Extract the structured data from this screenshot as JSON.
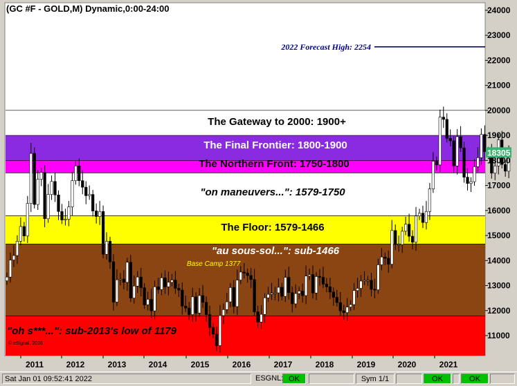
{
  "chart_data": {
    "type": "candlestick",
    "title": "(GC #F - GOLD,M) Dynamic,0:00-24:00",
    "ylim": [
      10200,
      24300
    ],
    "y_ticks": [
      "24000",
      "23000",
      "22000",
      "21000",
      "20000",
      "19000",
      "18000",
      "17000",
      "16000",
      "15000",
      "14000",
      "13000",
      "12000",
      "11000"
    ],
    "x_ticks": [
      "2011",
      "2012",
      "2013",
      "2014",
      "2015",
      "2016",
      "2017",
      "2018",
      "2019",
      "2020",
      "2021"
    ],
    "last_price_label": "18305",
    "last_price": 18305,
    "forecast": {
      "label": "2022 Forecast High:  2254",
      "value": 22540
    },
    "bands": [
      {
        "name": "gateway",
        "label": "The Gateway to 2000:  1900+",
        "low": 19000,
        "high": 20000,
        "color": "#ffffff",
        "text_color": "#000000",
        "italic": false
      },
      {
        "name": "frontier",
        "label": "The Final Frontier:  1800-1900",
        "low": 18000,
        "high": 19000,
        "color": "#8a2be2",
        "text_color": "#ffffff",
        "italic": false
      },
      {
        "name": "northern",
        "label": "The Northern Front:  1750-1800",
        "low": 17500,
        "high": 18000,
        "color": "#ff00ff",
        "text_color": "#000000",
        "italic": false
      },
      {
        "name": "maneuvers",
        "label": "\"on maneuvers...\":  1579-1750",
        "low": 15790,
        "high": 17500,
        "color": "#ffffff",
        "text_color": "#000000",
        "italic": true
      },
      {
        "name": "floor",
        "label": "The Floor:  1579-1466",
        "low": 14660,
        "high": 15790,
        "color": "#ffff00",
        "text_color": "#000000",
        "italic": false
      },
      {
        "name": "soussol",
        "label": "\"au sous-sol...\":  sub-1466",
        "low": 11790,
        "high": 14660,
        "color": "#8b4513",
        "text_color": "#ffffff",
        "italic": true
      },
      {
        "name": "ohs",
        "label": "\"oh s***...\":  sub-2013's low of 1179",
        "low": 10200,
        "high": 11790,
        "color": "#ff0000",
        "text_color": "#000000",
        "italic": true
      }
    ],
    "base_camp_label": "Base Camp 1377",
    "copyright": "© eSignal, 2016",
    "closes": [
      13340,
      14020,
      14200,
      14770,
      15360,
      14980,
      16280,
      18280,
      16240,
      17250,
      17520,
      15670,
      16640,
      17160,
      16620,
      15960,
      15620,
      15650,
      16140,
      17190,
      17780,
      17190,
      16930,
      16590,
      16640,
      15980,
      15760,
      15960,
      14250,
      14770,
      13950,
      12340,
      13230,
      13260,
      13130,
      13930,
      12500,
      12980,
      13340,
      12910,
      12230,
      12450,
      11990,
      12950,
      12840,
      13310,
      12950,
      13130,
      13220,
      12890,
      12820,
      12180,
      12100,
      11840,
      12550,
      11900,
      12600,
      12330,
      11840,
      11330,
      11060,
      10600,
      11800,
      12040,
      12350,
      12920,
      12160,
      13220,
      13540,
      13500,
      13400,
      13240,
      11950,
      11540,
      11850,
      12510,
      12650,
      12690,
      12710,
      12930,
      12570,
      13330,
      12720,
      12270,
      12680,
      12780,
      12600,
      13380,
      13440,
      12700,
      13360,
      13330,
      13060,
      12950,
      12740,
      12530,
      12320,
      11990,
      11920,
      12140,
      12240,
      12800,
      12890,
      13180,
      13210,
      13210,
      12850,
      12830,
      13830,
      14140,
      14090,
      13850,
      15200,
      14640,
      14640,
      15170,
      15450,
      14970,
      14730,
      15780,
      15890,
      15520,
      15960,
      16860,
      17970,
      17820,
      19730,
      19640,
      18880,
      18783,
      17780,
      18950,
      18500,
      17330,
      17080,
      17150,
      17750,
      18110,
      19040,
      18350,
      18360,
      17490,
      17780,
      18820,
      17840,
      17570,
      18300
    ]
  }
}
